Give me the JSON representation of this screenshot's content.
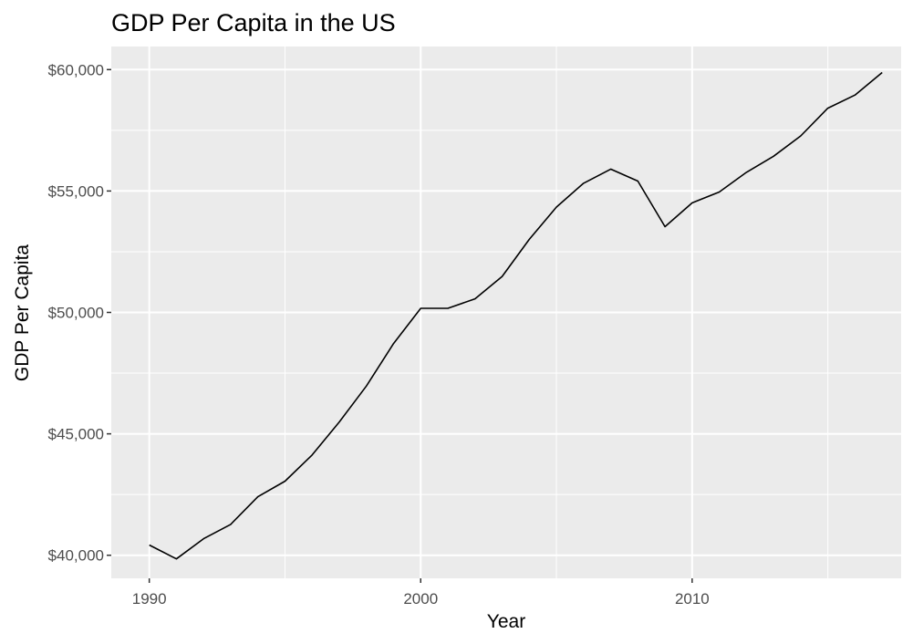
{
  "chart_data": {
    "type": "line",
    "title": "GDP Per Capita in the US",
    "xlabel": "Year",
    "ylabel": "GDP Per Capita",
    "x_ticks": [
      1990,
      2000,
      2010
    ],
    "y_ticks": [
      40000,
      45000,
      50000,
      55000,
      60000
    ],
    "y_tick_labels": [
      "$40,000",
      "$45,000",
      "$50,000",
      "$55,000",
      "$60,000"
    ],
    "xlim": [
      1988.6,
      2017.7
    ],
    "ylim": [
      39050,
      60950
    ],
    "grid": true,
    "colors": {
      "panel": "#ebebeb",
      "grid": "#ffffff",
      "line": "#000000",
      "tick_text": "#4d4d4d"
    },
    "series": [
      {
        "x": [
          1990,
          1991,
          1992,
          1993,
          1994,
          1995,
          1996,
          1997,
          1998,
          1999,
          2000,
          2001,
          2002,
          2003,
          2004,
          2005,
          2006,
          2007,
          2008,
          2009,
          2010,
          2011,
          2012,
          2013,
          2014,
          2015,
          2016,
          2017
        ],
        "values": [
          40420,
          39850,
          40680,
          41270,
          42410,
          43050,
          44130,
          45490,
          46970,
          48720,
          50170,
          50170,
          50560,
          51480,
          53010,
          54340,
          55320,
          55900,
          55410,
          53530,
          54510,
          54960,
          55770,
          56430,
          57270,
          58410,
          58950,
          59880
        ]
      }
    ]
  }
}
